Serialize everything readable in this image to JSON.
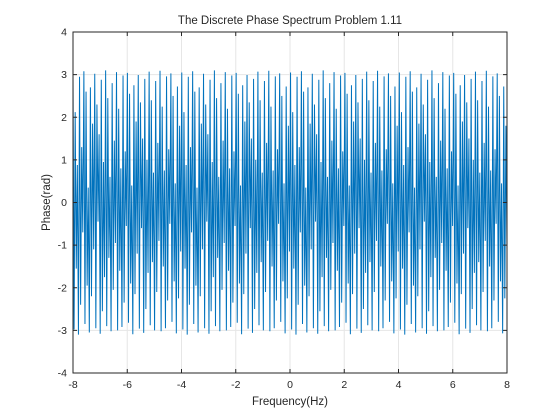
{
  "chart_data": {
    "type": "line",
    "title": "The Discrete Phase Spectrum Problem 1.11",
    "xlabel": "Frequency(Hz)",
    "ylabel": "Phase(rad)",
    "xlim": [
      -8,
      8
    ],
    "ylim": [
      -4,
      4
    ],
    "xticks": [
      "-8",
      "-6",
      "-4",
      "-2",
      "0",
      "2",
      "4",
      "6",
      "8"
    ],
    "yticks": [
      "-4",
      "-3",
      "-2",
      "-1",
      "0",
      "1",
      "2",
      "3",
      "4"
    ],
    "grid": true,
    "colors": {
      "line": "#0072BD",
      "axes": "#262626",
      "grid": "#e6e6e6"
    },
    "series": [
      {
        "x_range": [
          -8,
          8
        ],
        "num_points": 400,
        "description": "Rapidly oscillating wrapped phase values spanning approximately -3.1 to 3.1 rad",
        "values": [
          3.05,
          -2.98,
          2.12,
          -1.55,
          0.88,
          -3.1,
          2.95,
          -2.4,
          1.3,
          -0.7,
          3.08,
          -2.85,
          2.6,
          -1.95,
          0.35,
          -3.05,
          2.7,
          -2.2,
          1.85,
          -1.1,
          3.02,
          -2.95,
          2.3,
          -0.45,
          1.6,
          -3.08,
          2.88,
          -2.55,
          0.95,
          -1.75,
          3.1,
          -2.9,
          2.45,
          -1.3,
          0.6,
          -3.02,
          2.8,
          -2.05,
          1.45,
          -0.95,
          3.06,
          -3.0,
          2.2,
          -1.6,
          0.8,
          -2.92,
          2.98,
          -2.35,
          1.2,
          -0.55,
          3.04,
          -2.82,
          2.55,
          -1.9,
          0.4,
          -3.09,
          2.75,
          -2.15,
          1.9,
          -1.2,
          2.99,
          -2.96,
          2.35,
          -0.6,
          1.5,
          -3.06,
          2.9,
          -2.5,
          1.0,
          -1.65,
          3.07,
          -2.88,
          2.4,
          -1.4,
          0.7,
          -3.0,
          2.85,
          -2.1,
          1.4,
          -0.9,
          3.09,
          -3.02,
          2.25,
          -1.5,
          0.75,
          -2.95,
          2.96,
          -2.3,
          1.25,
          -0.5,
          3.03,
          -2.8,
          2.5,
          -1.85,
          0.45,
          -3.07,
          2.72,
          -2.25,
          1.8,
          -1.15
        ]
      }
    ]
  }
}
